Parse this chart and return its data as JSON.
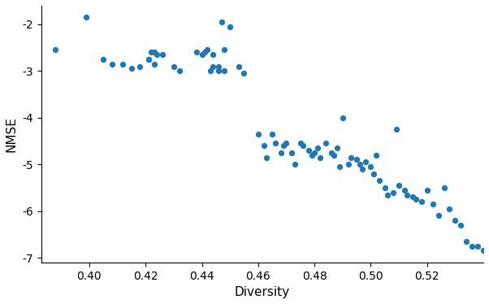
{
  "x": [
    0.388,
    0.399,
    0.405,
    0.408,
    0.412,
    0.415,
    0.418,
    0.421,
    0.423,
    0.426,
    0.421,
    0.423,
    0.43,
    0.432,
    0.422,
    0.424,
    0.438,
    0.44,
    0.442,
    0.444,
    0.446,
    0.448,
    0.441,
    0.444,
    0.447,
    0.45,
    0.453,
    0.455,
    0.443,
    0.446,
    0.448,
    0.46,
    0.462,
    0.463,
    0.465,
    0.466,
    0.468,
    0.469,
    0.47,
    0.472,
    0.473,
    0.475,
    0.476,
    0.478,
    0.479,
    0.48,
    0.481,
    0.482,
    0.484,
    0.486,
    0.488,
    0.487,
    0.489,
    0.49,
    0.492,
    0.493,
    0.495,
    0.496,
    0.497,
    0.498,
    0.5,
    0.501,
    0.502,
    0.503,
    0.505,
    0.506,
    0.508,
    0.509,
    0.51,
    0.512,
    0.513,
    0.515,
    0.516,
    0.518,
    0.52,
    0.522,
    0.524,
    0.526,
    0.528,
    0.53,
    0.532,
    0.534,
    0.536,
    0.538,
    0.54
  ],
  "y": [
    -2.55,
    -1.85,
    -2.75,
    -2.85,
    -2.85,
    -2.95,
    -2.9,
    -2.75,
    -2.6,
    -2.65,
    -2.75,
    -2.85,
    -2.9,
    -3.0,
    -2.6,
    -2.65,
    -2.6,
    -2.65,
    -2.55,
    -2.9,
    -3.0,
    -2.55,
    -2.6,
    -2.65,
    -1.95,
    -2.05,
    -2.9,
    -3.05,
    -3.0,
    -2.9,
    -3.0,
    -4.35,
    -4.6,
    -4.85,
    -4.35,
    -4.55,
    -4.75,
    -4.6,
    -4.55,
    -4.75,
    -5.0,
    -4.55,
    -4.6,
    -4.7,
    -4.8,
    -4.75,
    -4.65,
    -4.85,
    -4.55,
    -4.75,
    -4.65,
    -4.8,
    -5.05,
    -4.0,
    -5.0,
    -4.85,
    -4.9,
    -5.0,
    -5.1,
    -4.95,
    -5.05,
    -5.2,
    -4.8,
    -5.35,
    -5.5,
    -5.65,
    -5.6,
    -4.25,
    -5.45,
    -5.55,
    -5.65,
    -5.7,
    -5.75,
    -5.8,
    -5.55,
    -5.85,
    -6.1,
    -5.5,
    -5.95,
    -6.2,
    -6.3,
    -6.65,
    -6.75,
    -6.75,
    -6.85
  ],
  "color": "#1f77b4",
  "xlabel": "Diversity",
  "ylabel": "NMSE",
  "xlim": [
    0.383,
    0.54
  ],
  "ylim": [
    -7.1,
    -1.6
  ],
  "marker_size": 18,
  "xticks": [
    0.4,
    0.42,
    0.44,
    0.46,
    0.48,
    0.5,
    0.52
  ],
  "yticks": [
    -7,
    -6,
    -5,
    -4,
    -3,
    -2
  ]
}
